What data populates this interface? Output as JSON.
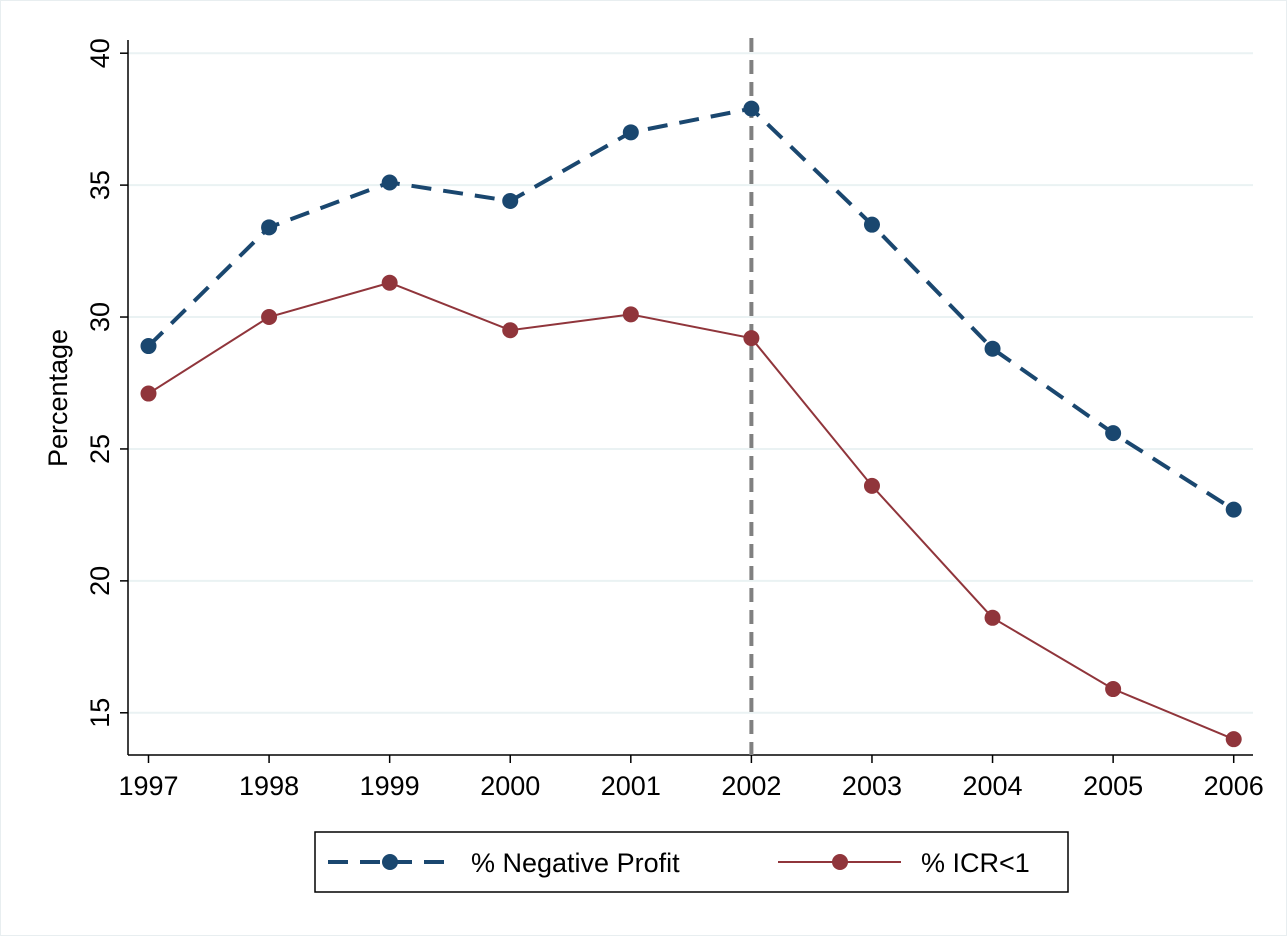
{
  "chart_data": {
    "type": "line",
    "ylabel": "Percentage",
    "x": [
      1997,
      1998,
      1999,
      2000,
      2001,
      2002,
      2003,
      2004,
      2005,
      2006
    ],
    "series": [
      {
        "name": "% Negative Profit",
        "color": "#1a476f",
        "line_style": "dashed",
        "values": [
          28.9,
          33.4,
          35.1,
          34.4,
          37.0,
          37.9,
          33.5,
          28.8,
          25.6,
          22.7
        ]
      },
      {
        "name": "% ICR<1",
        "color": "#90353b",
        "line_style": "solid",
        "values": [
          27.1,
          30.0,
          31.3,
          29.5,
          30.1,
          29.2,
          23.6,
          18.6,
          15.9,
          14.0
        ]
      }
    ],
    "xlim": [
      1996.83,
      2006.16
    ],
    "xticks": [
      1997,
      1998,
      1999,
      2000,
      2001,
      2002,
      2003,
      2004,
      2005,
      2006
    ],
    "ylim": [
      13.4,
      40.5
    ],
    "yticks": [
      15,
      20,
      25,
      30,
      35,
      40
    ],
    "vline": {
      "x": 2002,
      "color": "#808080",
      "line_style": "dashed"
    },
    "grid": true,
    "legend": "bottom"
  }
}
